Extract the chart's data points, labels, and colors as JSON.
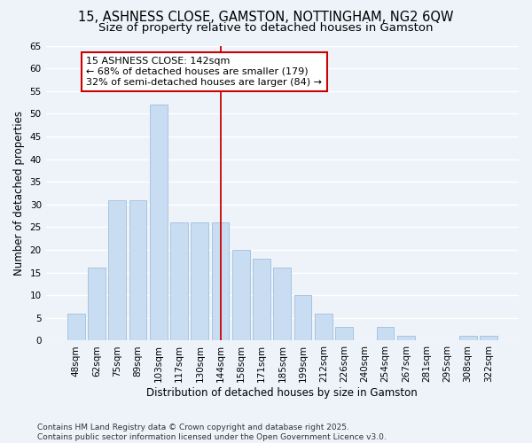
{
  "title": "15, ASHNESS CLOSE, GAMSTON, NOTTINGHAM, NG2 6QW",
  "subtitle": "Size of property relative to detached houses in Gamston",
  "xlabel": "Distribution of detached houses by size in Gamston",
  "ylabel": "Number of detached properties",
  "categories": [
    "48sqm",
    "62sqm",
    "75sqm",
    "89sqm",
    "103sqm",
    "117sqm",
    "130sqm",
    "144sqm",
    "158sqm",
    "171sqm",
    "185sqm",
    "199sqm",
    "212sqm",
    "226sqm",
    "240sqm",
    "254sqm",
    "267sqm",
    "281sqm",
    "295sqm",
    "308sqm",
    "322sqm"
  ],
  "values": [
    6,
    16,
    31,
    31,
    52,
    26,
    26,
    26,
    20,
    18,
    16,
    10,
    6,
    3,
    0,
    3,
    1,
    0,
    0,
    1,
    1
  ],
  "bar_color": "#c9ddf2",
  "bar_edge_color": "#a8c4e0",
  "vline_x_index": 7,
  "vline_color": "#cc0000",
  "annotation_line1": "15 ASHNESS CLOSE: 142sqm",
  "annotation_line2": "← 68% of detached houses are smaller (179)",
  "annotation_line3": "32% of semi-detached houses are larger (84) →",
  "annotation_box_color": "#ffffff",
  "annotation_box_edge_color": "#cc0000",
  "ylim": [
    0,
    65
  ],
  "yticks": [
    0,
    5,
    10,
    15,
    20,
    25,
    30,
    35,
    40,
    45,
    50,
    55,
    60,
    65
  ],
  "background_color": "#eef3fa",
  "grid_color": "#ffffff",
  "footer_line1": "Contains HM Land Registry data © Crown copyright and database right 2025.",
  "footer_line2": "Contains public sector information licensed under the Open Government Licence v3.0.",
  "title_fontsize": 10.5,
  "subtitle_fontsize": 9.5,
  "axis_label_fontsize": 8.5,
  "tick_fontsize": 7.5,
  "annotation_fontsize": 8,
  "footer_fontsize": 6.5
}
